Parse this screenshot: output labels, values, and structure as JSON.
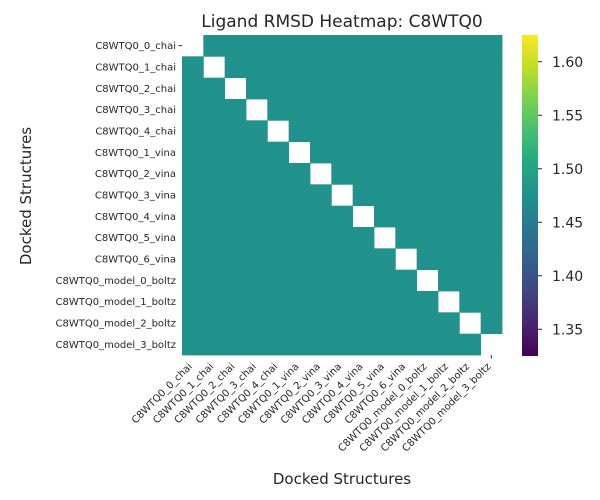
{
  "chart_data": {
    "type": "heatmap",
    "title": "Ligand RMSD Heatmap: C8WTQ0",
    "xlabel": "Docked Structures",
    "ylabel": "Docked Structures",
    "row_labels": [
      "C8WTQ0_0_chai",
      "C8WTQ0_1_chai",
      "C8WTQ0_2_chai",
      "C8WTQ0_3_chai",
      "C8WTQ0_4_chai",
      "C8WTQ0_1_vina",
      "C8WTQ0_2_vina",
      "C8WTQ0_3_vina",
      "C8WTQ0_4_vina",
      "C8WTQ0_5_vina",
      "C8WTQ0_6_vina",
      "C8WTQ0_model_0_boltz",
      "C8WTQ0_model_1_boltz",
      "C8WTQ0_model_2_boltz",
      "C8WTQ0_model_3_boltz"
    ],
    "col_labels": [
      "C8WTQ0_0_chai",
      "C8WTQ0_1_chai",
      "C8WTQ0_2_chai",
      "C8WTQ0_3_chai",
      "C8WTQ0_4_chai",
      "C8WTQ0_1_vina",
      "C8WTQ0_2_vina",
      "C8WTQ0_3_vina",
      "C8WTQ0_4_vina",
      "C8WTQ0_5_vina",
      "C8WTQ0_6_vina",
      "C8WTQ0_model_0_boltz",
      "C8WTQ0_model_1_boltz",
      "C8WTQ0_model_2_boltz",
      "C8WTQ0_model_3_boltz"
    ],
    "off_diagonal_value": 1.475,
    "diagonal_value": null,
    "missing_cells": [
      [
        0,
        0
      ],
      [
        14,
        14
      ]
    ],
    "colormap": "viridis",
    "colorbar": {
      "range": [
        1.325,
        1.625
      ],
      "ticks": [
        1.35,
        1.4,
        1.45,
        1.5,
        1.55,
        1.6
      ],
      "tick_labels": [
        "1.35",
        "1.40",
        "1.45",
        "1.50",
        "1.55",
        "1.60"
      ]
    },
    "cell_color": "#21918c",
    "empty_tick_label_row": 0,
    "empty_tick_label_col": 14,
    "grid": false
  }
}
